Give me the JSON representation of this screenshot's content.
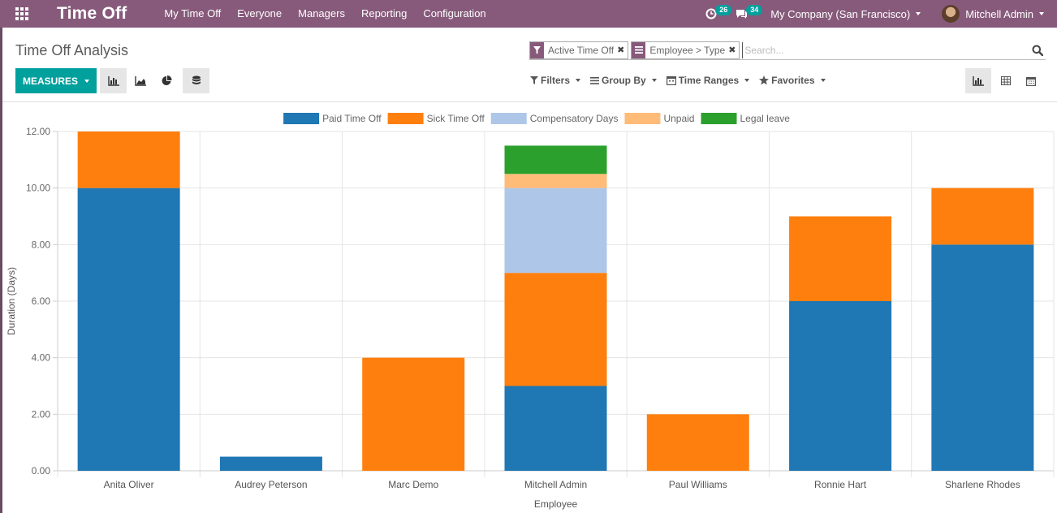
{
  "navbar": {
    "brand": "Time Off",
    "menu": [
      "My Time Off",
      "Everyone",
      "Managers",
      "Reporting",
      "Configuration"
    ],
    "activities_count": "26",
    "messages_count": "34",
    "company": "My Company (San Francisco)",
    "user": "Mitchell Admin"
  },
  "control_panel": {
    "title": "Time Off Analysis",
    "facets": [
      {
        "label": "Active Time Off",
        "icon": "filter-icon"
      },
      {
        "label": "Employee > Type",
        "icon": "group-by-icon"
      }
    ],
    "search_placeholder": "Search...",
    "measures_label": "MEASURES",
    "filters_label": "Filters",
    "group_by_label": "Group By",
    "time_ranges_label": "Time Ranges",
    "favorites_label": "Favorites"
  },
  "colors": {
    "navbar": "#875a7b",
    "primary": "#00a09d"
  },
  "chart_data": {
    "type": "bar",
    "stacked": true,
    "categories": [
      "Anita Oliver",
      "Audrey Peterson",
      "Marc Demo",
      "Mitchell Admin",
      "Paul Williams",
      "Ronnie Hart",
      "Sharlene Rhodes"
    ],
    "series": [
      {
        "name": "Paid Time Off",
        "color": "#1f77b4",
        "values": [
          10,
          0.5,
          0,
          3,
          0,
          6,
          8
        ]
      },
      {
        "name": "Sick Time Off",
        "color": "#ff7f0e",
        "values": [
          2,
          0,
          4,
          4,
          2,
          3,
          2
        ]
      },
      {
        "name": "Compensatory Days",
        "color": "#aec7e8",
        "values": [
          0,
          0,
          0,
          3,
          0,
          0,
          0
        ]
      },
      {
        "name": "Unpaid",
        "color": "#ffbb78",
        "values": [
          0,
          0,
          0,
          0.5,
          0,
          0,
          0
        ]
      },
      {
        "name": "Legal leave",
        "color": "#2ca02c",
        "values": [
          0,
          0,
          0,
          1,
          0,
          0,
          0
        ]
      }
    ],
    "yticks": [
      "0.00",
      "2.00",
      "4.00",
      "6.00",
      "8.00",
      "10.00",
      "12.00"
    ],
    "ylim": [
      0,
      12
    ],
    "xlabel": "Employee",
    "ylabel": "Duration (Days)",
    "legend": "top-center",
    "grid": true
  }
}
